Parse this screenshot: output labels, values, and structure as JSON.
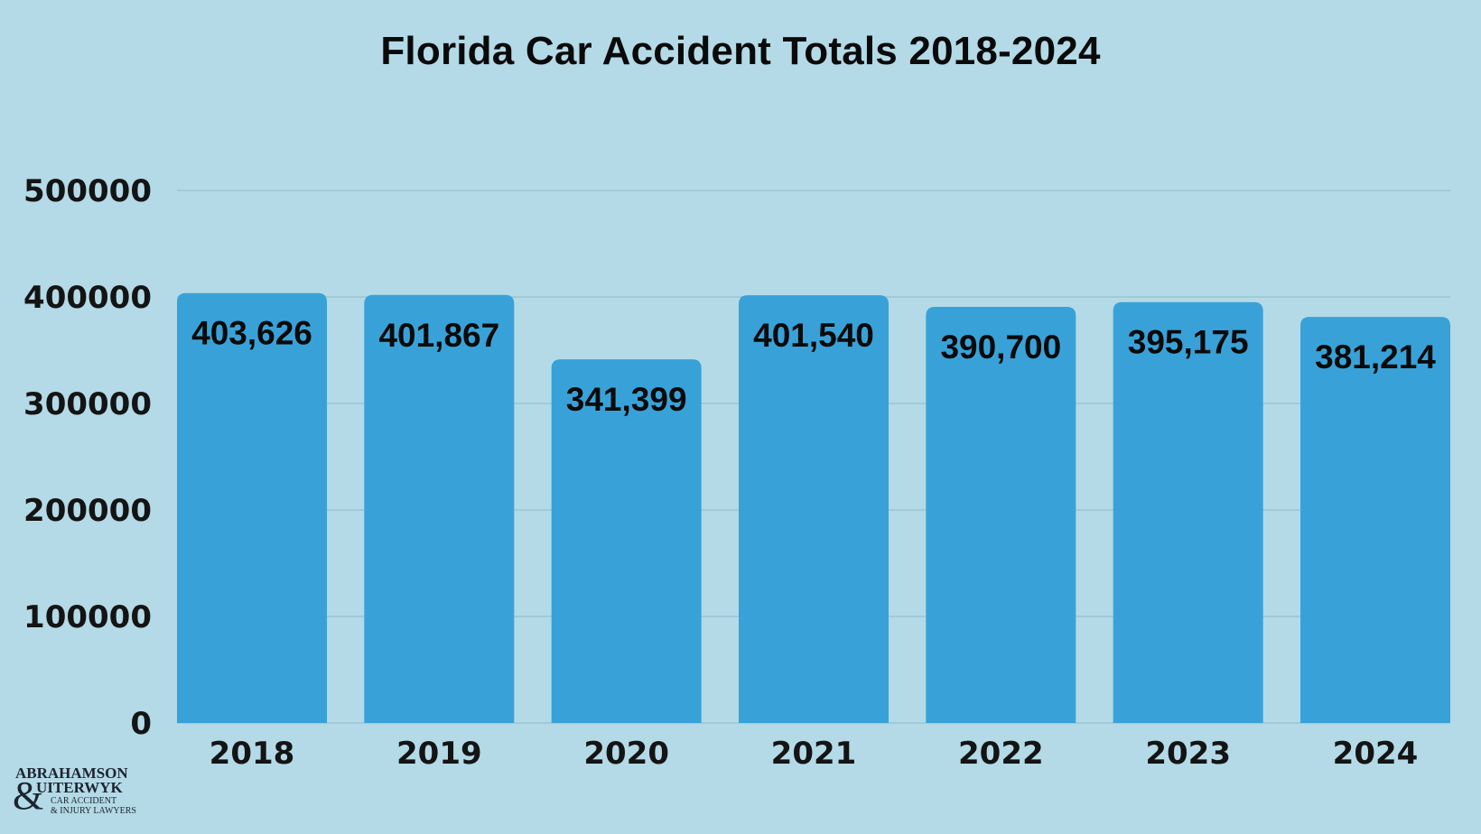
{
  "chart_data": {
    "type": "bar",
    "title": "Florida Car Accident Totals 2018-2024",
    "xlabel": "",
    "ylabel": "",
    "categories": [
      "2018",
      "2019",
      "2020",
      "2021",
      "2022",
      "2023",
      "2024"
    ],
    "values": [
      403626,
      401867,
      341399,
      401540,
      390700,
      395175,
      381214
    ],
    "value_labels": [
      "403,626",
      "401,867",
      "341,399",
      "401,540",
      "390,700",
      "395,175",
      "381,214"
    ],
    "ylim": [
      0,
      500000
    ],
    "yticks": [
      0,
      100000,
      200000,
      300000,
      400000,
      500000
    ],
    "ytick_labels": [
      "0",
      "100000",
      "200000",
      "300000",
      "400000",
      "500000"
    ],
    "grid": true,
    "legend": "none",
    "bar_color": "#38a2d8",
    "background_color": "#b3dae6",
    "grid_color": "#8fb9c9"
  },
  "logo": {
    "line1": "ABRAHAMSON",
    "line2": "UITERWYK",
    "line3": "CAR ACCIDENT",
    "line4": "& INJURY LAWYERS"
  }
}
